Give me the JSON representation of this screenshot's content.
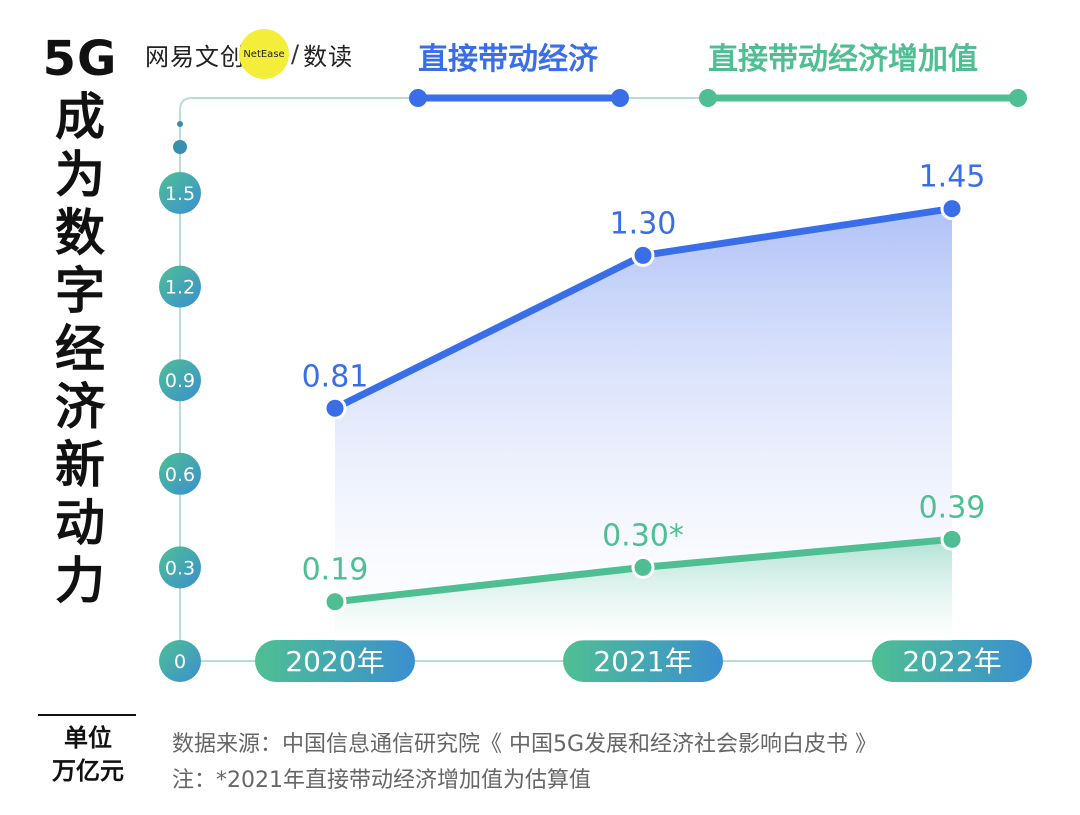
{
  "title_vertical": [
    "5G",
    "成",
    "为",
    "数",
    "字",
    "经",
    "济",
    "新",
    "动",
    "力"
  ],
  "brand": {
    "name": "网易文创",
    "badge": "NetEase",
    "section": "数读"
  },
  "unit": {
    "label": "单位",
    "value": "万亿元"
  },
  "source_note": {
    "source": "数据来源：中国信息通信研究院《 中国5G发展和经济社会影响白皮书 》",
    "note": "注：*2021年直接带动经济增加值为估算值"
  },
  "colors": {
    "blue": "#3a6ee8",
    "green": "#4fbf93",
    "axis": "#b8dcd8"
  },
  "chart_data": {
    "type": "line",
    "categories": [
      "2020年",
      "2021年",
      "2022年"
    ],
    "series": [
      {
        "name": "直接带动经济",
        "values": [
          0.81,
          1.3,
          1.45
        ],
        "labels": [
          "0.81",
          "1.30",
          "1.45"
        ],
        "color": "#3a6ee8"
      },
      {
        "name": "直接带动经济增加值",
        "values": [
          0.19,
          0.3,
          0.39
        ],
        "labels": [
          "0.19",
          "0.30*",
          "0.39"
        ],
        "color": "#4fbf93"
      }
    ],
    "yticks": [
      "0",
      "0.3",
      "0.6",
      "0.9",
      "1.2",
      "1.5"
    ],
    "ylim": [
      0,
      1.5
    ],
    "grid": false,
    "legend_position": "top"
  }
}
